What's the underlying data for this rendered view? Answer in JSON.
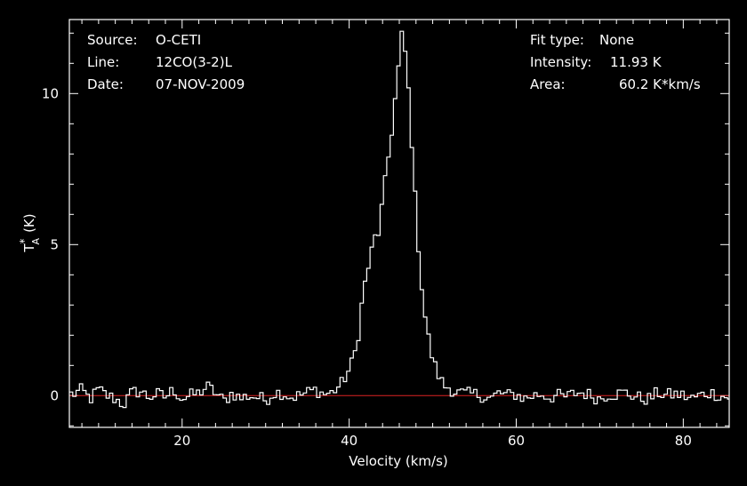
{
  "info_left": [
    {
      "key": "Source:",
      "value": "O-CETI"
    },
    {
      "key": "Line:",
      "value": "12CO(3-2)L"
    },
    {
      "key": "Date:",
      "value": "07-NOV-2009"
    }
  ],
  "info_right": [
    {
      "key": "Fit type:",
      "value": "None"
    },
    {
      "key": "Intensity:",
      "value": "11.93 K"
    },
    {
      "key": "Area:",
      "value": "60.2 K*km/s"
    }
  ],
  "chart_data": {
    "type": "line",
    "xlabel": "Velocity (km/s)",
    "ylabel_main": "T",
    "ylabel_sup": "*",
    "ylabel_sub": "A",
    "ylabel_unit": "(K)",
    "xlim": [
      6.5,
      85.5
    ],
    "ylim": [
      -1.05,
      12.45
    ],
    "x_ticks": [
      20,
      40,
      60,
      80
    ],
    "y_ticks": [
      0,
      5,
      10
    ],
    "x_minor_step": 2,
    "y_minor_step": 1,
    "line_color": "#ffffff",
    "baseline_color": "#dd2222",
    "baseline_value": 0,
    "step_width": 0.4,
    "series": [
      {
        "x": [
          7.0,
          8.0,
          9.0,
          10.0,
          11.0,
          12.0,
          13.0,
          14.0,
          15.0,
          16.0,
          17.0,
          18.0,
          19.0,
          20.0,
          21.0,
          22.0,
          23.0,
          24.0,
          25.0,
          26.0,
          27.0,
          28.0,
          29.0,
          30.0,
          31.0,
          32.0,
          33.0,
          34.0,
          35.0,
          36.0,
          37.0,
          38.0,
          38.5,
          39.0,
          39.5,
          40.0,
          40.5,
          41.0,
          41.5,
          42.0,
          42.5,
          43.0,
          43.5,
          44.0,
          44.5,
          45.0,
          45.5,
          46.0,
          46.3,
          46.6,
          46.9,
          47.2,
          47.5,
          47.8,
          48.2,
          48.6,
          49.0,
          49.5,
          50.0,
          50.5,
          51.0,
          51.5,
          52.0,
          52.5,
          53.0,
          54.0,
          55.0,
          56.0,
          57.0,
          58.0,
          59.0,
          60.0,
          61.0,
          62.0,
          63.0,
          64.0,
          65.0,
          66.0,
          67.0,
          68.0,
          69.0,
          70.0,
          71.0,
          72.0,
          73.0,
          74.0,
          75.0,
          76.0,
          77.0,
          78.0,
          79.0,
          80.0,
          81.0,
          82.0,
          83.0,
          84.0,
          85.0
        ],
        "y": [
          0.05,
          0.18,
          -0.12,
          0.2,
          0.0,
          -0.1,
          -0.3,
          0.1,
          0.15,
          -0.05,
          0.05,
          -0.05,
          0.2,
          -0.1,
          0.0,
          0.08,
          0.3,
          0.1,
          -0.2,
          0.1,
          -0.1,
          0.0,
          -0.05,
          -0.15,
          0.1,
          0.1,
          -0.05,
          0.0,
          0.1,
          0.2,
          0.05,
          0.1,
          0.25,
          0.35,
          0.6,
          0.85,
          1.2,
          1.8,
          3.0,
          3.9,
          4.5,
          5.2,
          5.4,
          6.4,
          7.5,
          8.5,
          9.8,
          11.1,
          11.9,
          11.6,
          10.9,
          9.7,
          8.4,
          7.0,
          5.3,
          3.9,
          2.8,
          1.9,
          1.2,
          0.8,
          0.5,
          0.3,
          0.28,
          0.15,
          0.1,
          0.05,
          0.05,
          0.0,
          -0.1,
          0.1,
          0.0,
          0.05,
          -0.1,
          0.0,
          0.05,
          -0.05,
          0.0,
          -0.05,
          0.08,
          0.1,
          0.0,
          -0.1,
          0.05,
          0.05,
          0.1,
          0.0,
          -0.1,
          -0.1,
          0.1,
          0.0,
          0.05,
          0.0,
          -0.1,
          0.0,
          0.1,
          0.05,
          -0.05
        ]
      }
    ]
  }
}
